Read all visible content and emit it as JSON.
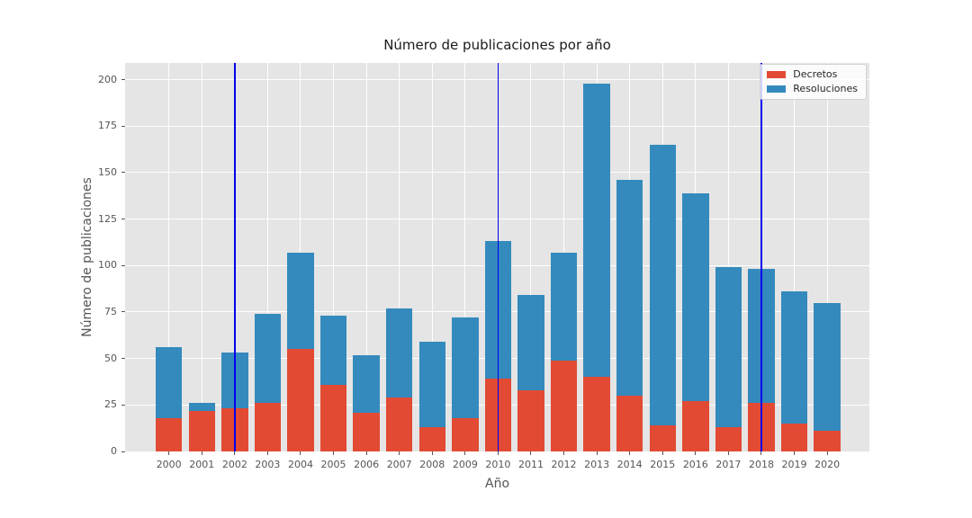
{
  "chart_data": {
    "type": "bar",
    "stacked": true,
    "title": "Número de publicaciones por año",
    "xlabel": "Año",
    "ylabel": "Número de publicaciones",
    "categories": [
      2000,
      2001,
      2002,
      2003,
      2004,
      2005,
      2006,
      2007,
      2008,
      2009,
      2010,
      2011,
      2012,
      2013,
      2014,
      2015,
      2016,
      2017,
      2018,
      2019,
      2020
    ],
    "series": [
      {
        "name": "Decretos",
        "color": "#E24A33",
        "values": [
          18,
          22,
          23,
          26,
          55,
          36,
          21,
          29,
          13,
          18,
          39,
          33,
          49,
          40,
          30,
          14,
          27,
          13,
          26,
          15,
          11
        ]
      },
      {
        "name": "Resoluciones",
        "color": "#348ABD",
        "values": [
          38,
          4,
          30,
          48,
          52,
          37,
          31,
          48,
          46,
          54,
          74,
          51,
          58,
          158,
          116,
          151,
          112,
          86,
          72,
          71,
          69
        ]
      }
    ],
    "totals": [
      56,
      26,
      53,
      74,
      107,
      73,
      52,
      77,
      59,
      72,
      113,
      84,
      107,
      198,
      146,
      165,
      139,
      99,
      98,
      86,
      80
    ],
    "yticks": [
      0,
      25,
      50,
      75,
      100,
      125,
      150,
      175,
      200
    ],
    "ylim": [
      0,
      209
    ],
    "grid": true,
    "vlines": {
      "years": [
        2002,
        2010,
        2018
      ],
      "color": "#0000EE"
    },
    "legend": {
      "position": "upper right",
      "entries": [
        "Decretos",
        "Resoluciones"
      ]
    },
    "style": {
      "plot_background": "#E5E5E5",
      "grid_color": "#FFFFFF",
      "tick_color": "#555555",
      "label_color": "#555555",
      "title_color": "#1a1a1a"
    }
  }
}
